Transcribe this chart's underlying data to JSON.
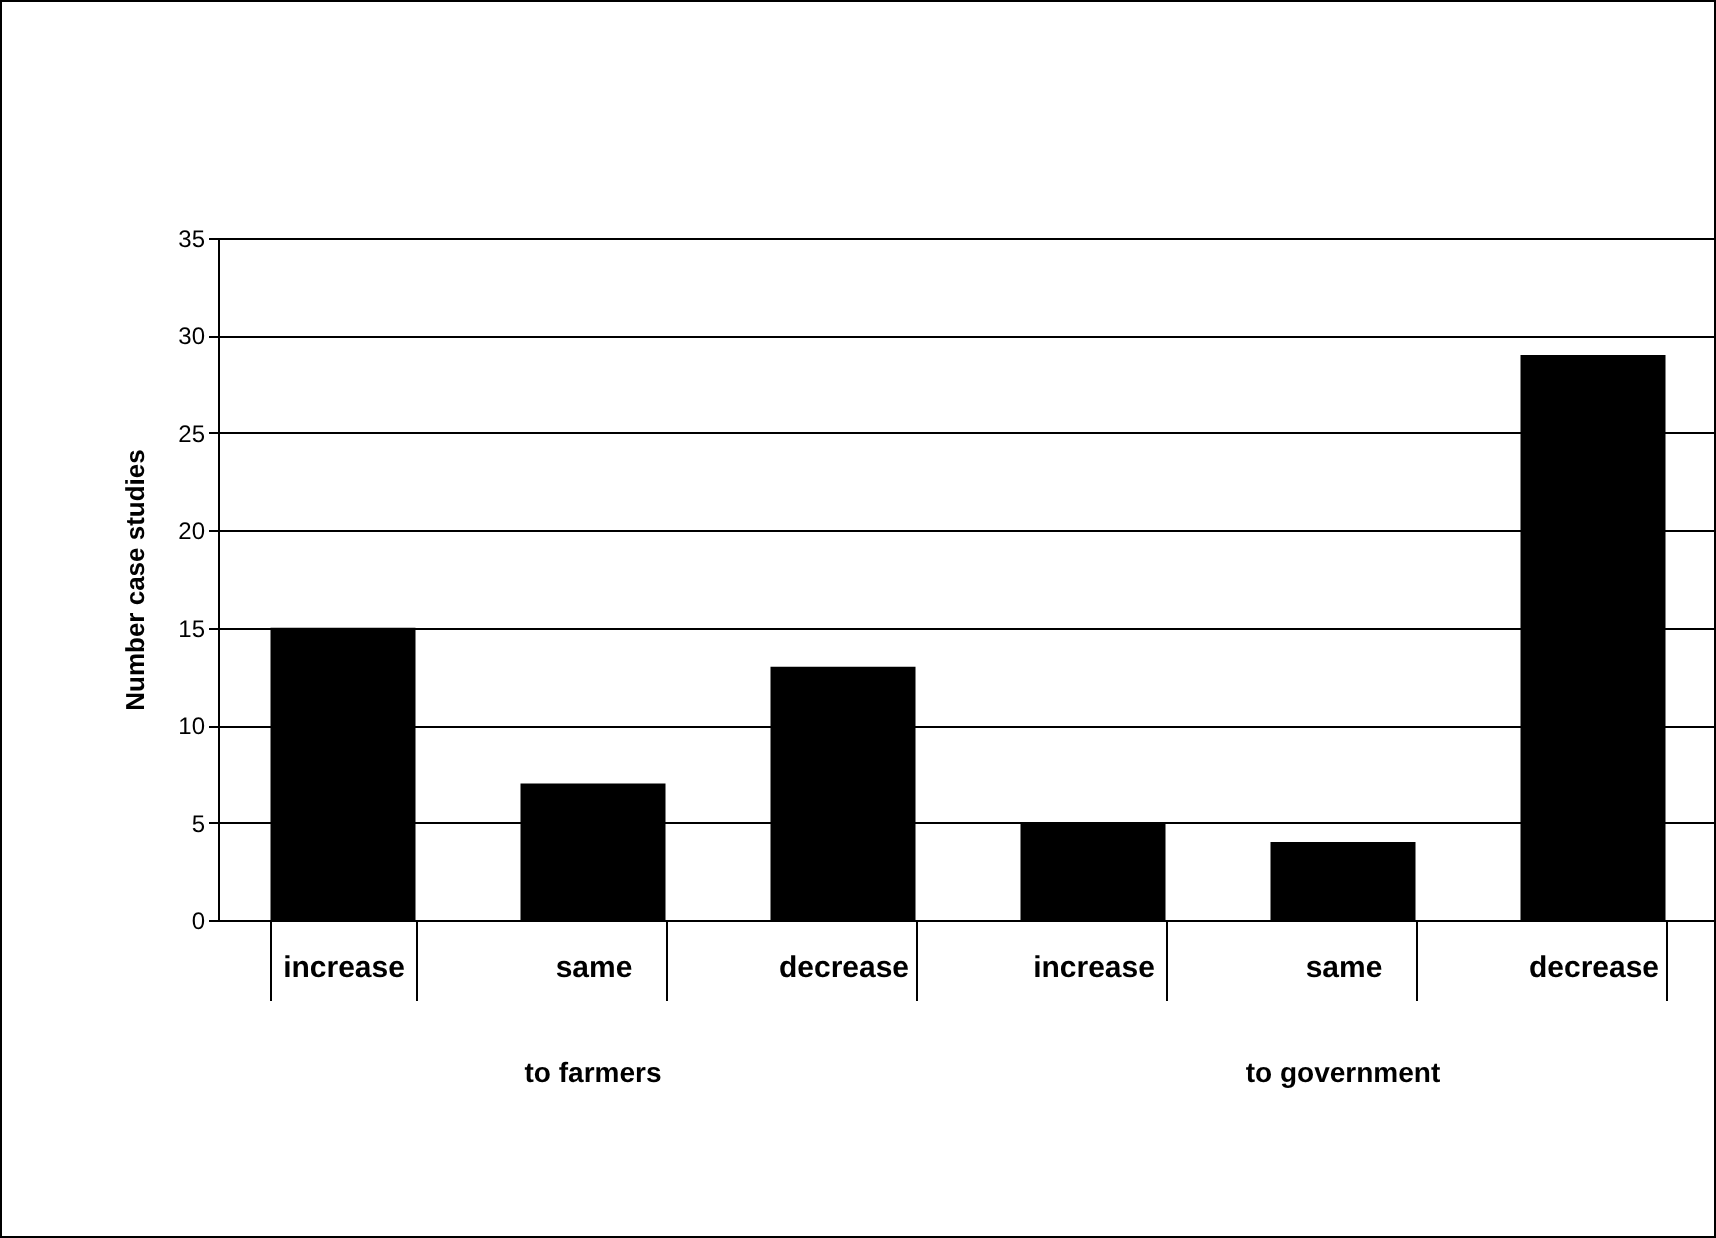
{
  "chart_data": {
    "type": "bar",
    "ylabel": "Number case studies",
    "categories": [
      "increase",
      "same",
      "decrease",
      "increase",
      "same",
      "decrease"
    ],
    "values": [
      15,
      7,
      13,
      5,
      4,
      29
    ],
    "color": "#000000",
    "ylim": [
      0,
      35
    ],
    "yticks": [
      0,
      5,
      10,
      15,
      20,
      25,
      30,
      35
    ],
    "grid": "y",
    "annotations": [
      "to farmers",
      "to government"
    ]
  }
}
